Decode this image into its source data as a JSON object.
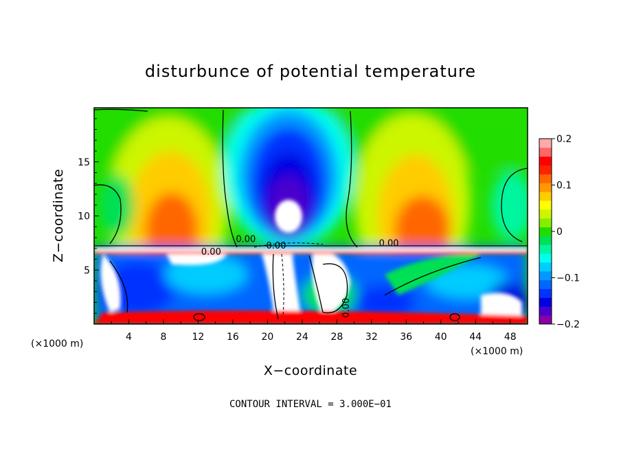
{
  "chart_data": {
    "type": "heatmap",
    "title": "disturbunce of potential temperature",
    "xlabel": "X−coordinate",
    "ylabel": "Z−coordinate",
    "x_unit": "(×1000 m)",
    "y_unit": "(×1000 m)",
    "xlim": [
      0,
      50
    ],
    "ylim": [
      0,
      20
    ],
    "x_ticks": [
      4,
      8,
      12,
      16,
      20,
      24,
      28,
      32,
      36,
      40,
      44,
      48
    ],
    "y_ticks": [
      5,
      10,
      15
    ],
    "colorbar": {
      "min": -0.2,
      "max": 0.2,
      "tick_values": [
        0.2,
        0.1,
        0,
        -0.1,
        -0.2
      ],
      "tick_labels": [
        "0.2",
        "0.1",
        "0",
        "−0.1",
        "−0.2"
      ],
      "colors": [
        "#8a00a8",
        "#4a00cc",
        "#0000e0",
        "#0033ff",
        "#0066ff",
        "#0099ff",
        "#00ccff",
        "#00ffee",
        "#00f5a0",
        "#00e055",
        "#22dd00",
        "#88ee00",
        "#ccf500",
        "#ffff00",
        "#ffcc00",
        "#ff9900",
        "#ff6600",
        "#ff2200",
        "#ff0000",
        "#ff6666",
        "#ffaaaa"
      ]
    },
    "contour_labels": [
      "0.00",
      "0.00",
      "0.00",
      "0.00",
      "0.00"
    ],
    "contour_interval_text": "CONTOUR INTERVAL = 3.000E−01"
  }
}
